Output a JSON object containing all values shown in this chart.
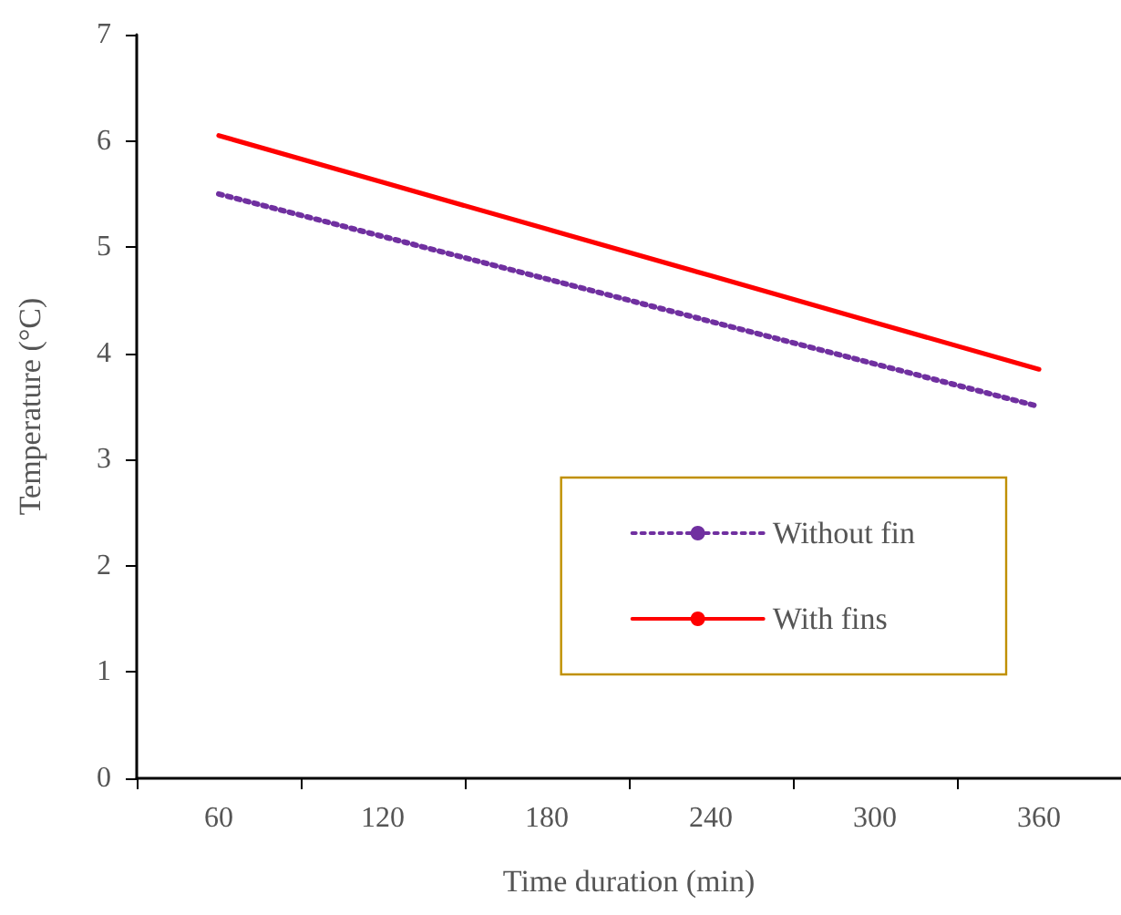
{
  "chart_data": {
    "type": "line",
    "xlabel": "Time duration (min)",
    "ylabel": "Temperature (°C)",
    "xlim": [
      30,
      390
    ],
    "xticks": [
      {
        "value": 30,
        "label": null
      },
      {
        "value": 60,
        "label": "60"
      },
      {
        "value": 90,
        "label": null
      },
      {
        "value": 120,
        "label": "120"
      },
      {
        "value": 150,
        "label": null
      },
      {
        "value": 180,
        "label": "180"
      },
      {
        "value": 210,
        "label": null
      },
      {
        "value": 240,
        "label": "240"
      },
      {
        "value": 270,
        "label": null
      },
      {
        "value": 300,
        "label": "300"
      },
      {
        "value": 330,
        "label": null
      },
      {
        "value": 360,
        "label": "360"
      },
      {
        "value": 390,
        "label": null
      }
    ],
    "ylim": [
      0,
      7
    ],
    "yticks": [
      0,
      1,
      2,
      3,
      4,
      5,
      6,
      7
    ],
    "grid": false,
    "legend": "bottom right",
    "marker": "none",
    "series": [
      {
        "name": "Without fin",
        "color": "#7030a0",
        "line_style": "dotted",
        "x": [
          60,
          120,
          180,
          240,
          300,
          360
        ],
        "values": [
          5.5,
          5.1,
          4.7,
          4.3,
          3.9,
          3.5
        ]
      },
      {
        "name": "With fins",
        "color": "#ff0000",
        "line_style": "solid",
        "x": [
          60,
          120,
          180,
          240,
          300,
          360
        ],
        "values": [
          6.05,
          5.61,
          5.17,
          4.73,
          4.29,
          3.85
        ]
      }
    ]
  }
}
